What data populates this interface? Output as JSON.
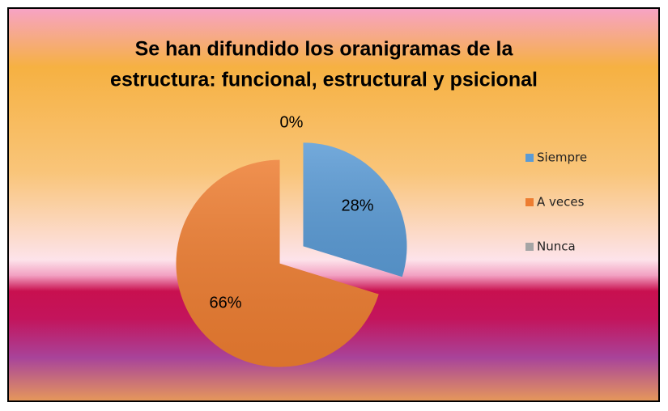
{
  "chart_data": {
    "type": "pie",
    "title": [
      "Se han difundido los oranigramas de la",
      "estructura: funcional, estructural y psicional"
    ],
    "categories": [
      "Siempre",
      "A veces",
      "Nunca"
    ],
    "values": [
      28,
      66,
      0
    ],
    "value_labels": [
      "28%",
      "66%",
      "0%"
    ],
    "colors": [
      "#5b9bd5",
      "#ed7d31",
      "#a5a5a5"
    ],
    "legend": "right"
  }
}
